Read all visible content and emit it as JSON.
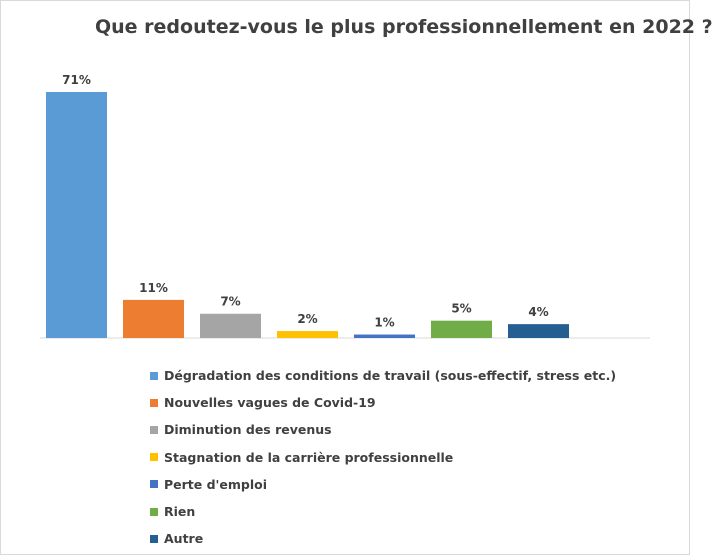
{
  "chart_data": {
    "type": "bar",
    "title": "Que redoutez-vous le plus professionnellement en 2022 ?",
    "categories": [
      "Dégradation des conditions de travail (sous-effectif, stress etc.)",
      "Nouvelles vagues de Covid-19",
      "Diminution des revenus",
      "Stagnation de la carrière professionnelle",
      "Perte d'emploi",
      "Rien",
      "Autre"
    ],
    "values": [
      71,
      11,
      7,
      2,
      1,
      5,
      4
    ],
    "value_labels": [
      "71%",
      "11%",
      "7%",
      "2%",
      "1%",
      "5%",
      "4%"
    ],
    "colors": [
      "#5b9bd5",
      "#ed7d31",
      "#a5a5a5",
      "#ffc000",
      "#4472c4",
      "#70ad47",
      "#255e91"
    ],
    "unit": "%",
    "ylim": [
      0,
      72
    ],
    "grid": false,
    "legend_position": "bottom",
    "xlabel": "",
    "ylabel": ""
  }
}
